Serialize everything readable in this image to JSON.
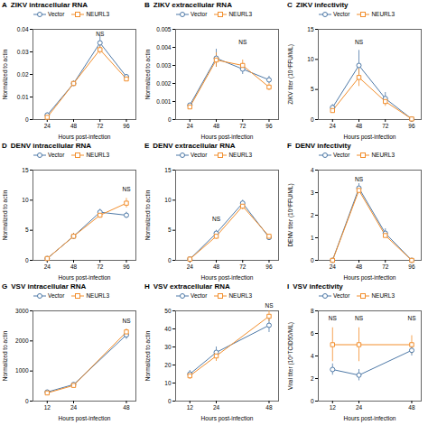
{
  "chart_data": [
    {
      "type": "line",
      "panel_label": "A",
      "title": "ZIKV intracellular RNA",
      "xlabel": "Hours post-infection",
      "ylabel": "Normalized to actin",
      "x": [
        24,
        48,
        72,
        96
      ],
      "series": [
        {
          "name": "Vector",
          "marker": "circle",
          "values": [
            0.002,
            0.016,
            0.034,
            0.019
          ],
          "errors": [
            0.001,
            0.001,
            0.003,
            0.001
          ]
        },
        {
          "name": "NEURL3",
          "marker": "square",
          "values": [
            0.001,
            0.016,
            0.031,
            0.018
          ],
          "errors": [
            0.001,
            0.001,
            0.002,
            0.001
          ]
        }
      ],
      "xlim": [
        11.04,
        104.64
      ],
      "xticks": [
        24,
        48,
        72,
        96
      ],
      "ylim": [
        0,
        0.04
      ],
      "yticks": [
        0,
        0.01,
        0.02,
        0.03,
        0.04
      ],
      "annotations": [
        {
          "x": 72,
          "y": 0.037,
          "text": "NS"
        }
      ],
      "legend": "top",
      "grid": false
    },
    {
      "type": "line",
      "panel_label": "B",
      "title": "ZIKV extracellular RNA",
      "xlabel": "Hours post-infection",
      "ylabel": "Normalized to actin",
      "x": [
        24,
        48,
        72,
        96
      ],
      "series": [
        {
          "name": "Vector",
          "marker": "circle",
          "values": [
            0.0008,
            0.0034,
            0.0028,
            0.0022
          ],
          "errors": [
            0.0001,
            0.0005,
            0.0003,
            0.0002
          ]
        },
        {
          "name": "NEURL3",
          "marker": "square",
          "values": [
            0.0007,
            0.0033,
            0.003,
            0.0018
          ],
          "errors": [
            0.0001,
            0.0004,
            0.0003,
            0.0002
          ]
        }
      ],
      "xlim": [
        11.04,
        104.64
      ],
      "xticks": [
        24,
        48,
        72,
        96
      ],
      "ylim": [
        0,
        0.005
      ],
      "yticks": [
        0,
        0.001,
        0.002,
        0.003,
        0.004,
        0.005
      ],
      "annotations": [
        {
          "x": 72,
          "y": 0.0042,
          "text": "NS"
        }
      ],
      "legend": "top",
      "grid": false
    },
    {
      "type": "line",
      "panel_label": "C",
      "title": "ZIKV infectivity",
      "xlabel": "Hours post-infection",
      "ylabel": "ZIKV titer (10⁴FFU/ML)",
      "x": [
        24,
        48,
        72,
        96
      ],
      "series": [
        {
          "name": "Vector",
          "marker": "circle",
          "values": [
            2.0,
            9.0,
            3.5,
            0.1
          ],
          "errors": [
            0.5,
            2.5,
            1.0,
            0.05
          ]
        },
        {
          "name": "NEURL3",
          "marker": "square",
          "values": [
            1.5,
            7.0,
            3.0,
            0.1
          ],
          "errors": [
            0.3,
            1.5,
            0.8,
            0.05
          ]
        }
      ],
      "xlim": [
        11.04,
        104.64
      ],
      "xticks": [
        24,
        48,
        72,
        96
      ],
      "ylim": [
        0,
        15
      ],
      "yticks": [
        0,
        5,
        10,
        15
      ],
      "annotations": [
        {
          "x": 48,
          "y": 12.5,
          "text": "NS"
        }
      ],
      "legend": "top",
      "grid": false
    },
    {
      "type": "line",
      "panel_label": "D",
      "title": "DENV intracellular RNA",
      "xlabel": "Hours post-infection",
      "ylabel": "Normalized to actin",
      "x": [
        24,
        48,
        72,
        96
      ],
      "series": [
        {
          "name": "Vector",
          "marker": "circle",
          "values": [
            0.3,
            4.0,
            8.0,
            7.5
          ],
          "errors": [
            0.1,
            0.5,
            0.5,
            0.5
          ]
        },
        {
          "name": "NEURL3",
          "marker": "square",
          "values": [
            0.3,
            4.0,
            7.5,
            9.5
          ],
          "errors": [
            0.1,
            0.5,
            0.5,
            0.8
          ]
        }
      ],
      "xlim": [
        11.04,
        104.64
      ],
      "xticks": [
        24,
        48,
        72,
        96
      ],
      "ylim": [
        0,
        15
      ],
      "yticks": [
        0,
        5,
        10,
        15
      ],
      "annotations": [
        {
          "x": 96,
          "y": 11.5,
          "text": "NS"
        }
      ],
      "legend": "top",
      "grid": false
    },
    {
      "type": "line",
      "panel_label": "E",
      "title": "DENV extracellular RNA",
      "xlabel": "Hours post-infection",
      "ylabel": "Normalized to actin",
      "x": [
        24,
        48,
        72,
        96
      ],
      "series": [
        {
          "name": "Vector",
          "marker": "circle",
          "values": [
            0.2,
            4.5,
            9.5,
            3.8
          ],
          "errors": [
            0.1,
            0.5,
            0.5,
            0.4
          ]
        },
        {
          "name": "NEURL3",
          "marker": "square",
          "values": [
            0.2,
            4.0,
            9.0,
            4.0
          ],
          "errors": [
            0.1,
            0.5,
            0.6,
            0.3
          ]
        }
      ],
      "xlim": [
        11.04,
        104.64
      ],
      "xticks": [
        24,
        48,
        72,
        96
      ],
      "ylim": [
        0,
        15
      ],
      "yticks": [
        0,
        5,
        10,
        15
      ],
      "annotations": [
        {
          "x": 48,
          "y": 6.5,
          "text": "NS"
        }
      ],
      "legend": "top",
      "grid": false
    },
    {
      "type": "line",
      "panel_label": "F",
      "title": "DENV infectivity",
      "xlabel": "Hours post-infection",
      "ylabel": "DENV titer (10⁶FFU/ML)",
      "x": [
        24,
        48,
        72,
        96
      ],
      "series": [
        {
          "name": "Vector",
          "marker": "circle",
          "values": [
            0.0,
            3.2,
            1.2,
            0.0
          ],
          "errors": [
            0.0,
            0.2,
            0.2,
            0.0
          ]
        },
        {
          "name": "NEURL3",
          "marker": "square",
          "values": [
            0.0,
            3.1,
            1.1,
            0.0
          ],
          "errors": [
            0.0,
            0.1,
            0.1,
            0.0
          ]
        }
      ],
      "xlim": [
        11.04,
        104.64
      ],
      "xticks": [
        24,
        48,
        72,
        96
      ],
      "ylim": [
        0,
        4
      ],
      "yticks": [
        0,
        1,
        2,
        3,
        4
      ],
      "annotations": [
        {
          "x": 48,
          "y": 3.5,
          "text": "NS"
        }
      ],
      "legend": "top",
      "grid": false
    },
    {
      "type": "line",
      "panel_label": "G",
      "title": "VSV intracellular RNA",
      "xlabel": "Hours post-infection",
      "ylabel": "Normalized to actin",
      "x": [
        12,
        24,
        48
      ],
      "series": [
        {
          "name": "Vector",
          "marker": "circle",
          "values": [
            300,
            550,
            2200
          ],
          "errors": [
            50,
            60,
            150
          ]
        },
        {
          "name": "NEURL3",
          "marker": "square",
          "values": [
            270,
            520,
            2300
          ],
          "errors": [
            40,
            60,
            100
          ]
        }
      ],
      "xlim": [
        5.52,
        52.32
      ],
      "xticks": [
        12,
        24,
        48
      ],
      "ylim": [
        0,
        3000
      ],
      "yticks": [
        0,
        1000,
        2000,
        3000
      ],
      "annotations": [
        {
          "x": 48,
          "y": 2600,
          "text": "NS"
        }
      ],
      "legend": "top",
      "grid": false
    },
    {
      "type": "line",
      "panel_label": "H",
      "title": "VSV extracellular RNA",
      "xlabel": "Hours post-infection",
      "ylabel": "Normalized to actin",
      "x": [
        12,
        24,
        48
      ],
      "series": [
        {
          "name": "Vector",
          "marker": "circle",
          "values": [
            15,
            27,
            42
          ],
          "errors": [
            2,
            3,
            4
          ]
        },
        {
          "name": "NEURL3",
          "marker": "square",
          "values": [
            14,
            25,
            47
          ],
          "errors": [
            2,
            3,
            3
          ]
        }
      ],
      "xlim": [
        5.52,
        52.32
      ],
      "xticks": [
        12,
        24,
        48
      ],
      "ylim": [
        0,
        50
      ],
      "yticks": [
        0,
        10,
        20,
        30,
        40,
        50
      ],
      "annotations": [
        {
          "x": 48,
          "y": 52,
          "text": "NS"
        }
      ],
      "legend": "top",
      "grid": false
    },
    {
      "type": "line",
      "panel_label": "I",
      "title": "VSV infectivity",
      "xlabel": "Hours post-infection",
      "ylabel": "Viral titer (10⁹TCID50/ML)",
      "x": [
        12,
        24,
        48
      ],
      "series": [
        {
          "name": "Vector",
          "marker": "circle",
          "values": [
            2.8,
            2.3,
            4.5
          ],
          "errors": [
            0.5,
            0.5,
            0.5
          ]
        },
        {
          "name": "NEURL3",
          "marker": "square",
          "values": [
            5.0,
            5.0,
            5.0
          ],
          "errors": [
            1.5,
            1.5,
            0.8
          ]
        }
      ],
      "xlim": [
        5.52,
        52.32
      ],
      "xticks": [
        12,
        24,
        48
      ],
      "ylim": [
        0,
        8
      ],
      "yticks": [
        0,
        2,
        4,
        6,
        8
      ],
      "annotations": [
        {
          "x": 12,
          "y": 7.2,
          "text": "NS"
        },
        {
          "x": 24,
          "y": 7.2,
          "text": "NS"
        },
        {
          "x": 48,
          "y": 7.2,
          "text": "NS"
        }
      ],
      "legend": "top",
      "grid": false
    }
  ]
}
